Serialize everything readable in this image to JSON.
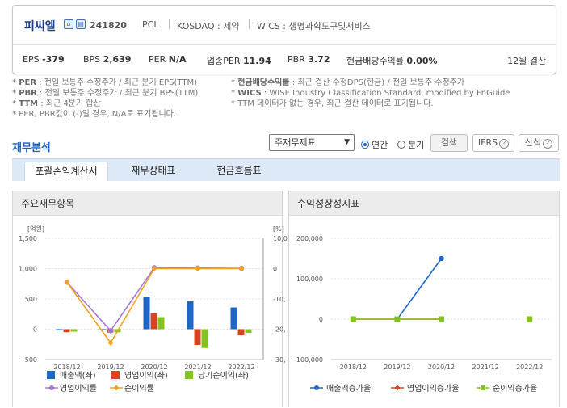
{
  "company": {
    "name": "피씨엘",
    "code": "241820",
    "eng": "PCL",
    "market": "KOSDAQ : 제약",
    "wics": "WICS : 생명과학도구및서비스",
    "metrics": [
      {
        "label": "EPS",
        "value": "-379"
      },
      {
        "label": "BPS",
        "value": "2,639"
      },
      {
        "label": "PER",
        "value": "N/A"
      },
      {
        "label": "업종PER",
        "value": "11.94"
      },
      {
        "label": "PBR",
        "value": "3.72"
      },
      {
        "label": "현금배당수익률",
        "value": "0.00%"
      }
    ],
    "fiscal": "12월 결산"
  },
  "notes": {
    "left": [
      {
        "k": "PER",
        "t": " : 전일 보통주 수정주가 / 최근 분기 EPS(TTM)"
      },
      {
        "k": "PBR",
        "t": " : 전일 보통주 수정주가 / 최근 분기 BPS(TTM)"
      },
      {
        "k": "TTM",
        "t": " : 최근 4분기 합산"
      }
    ],
    "right": [
      {
        "k": "현금배당수익률",
        "t": " : 최근 결산 수정DPS(현금) / 전일 보통주 수정주가"
      },
      {
        "k": "WICS",
        "t": " : WISE Industry Classification Standard, modified by FnGuide"
      },
      {
        "k": "",
        "t": "TTM 데이터가 없는 경우, 최근 결산 데이터로 표기됩니다."
      }
    ],
    "bottom": "PER, PBR값이 (-)일 경우, N/A로 표기됩니다."
  },
  "section": {
    "title": "재무분석",
    "select_value": "주재무제표",
    "radio_annual": "연간",
    "radio_quarter": "분기",
    "search_btn": "검색",
    "ifrs_btn": "IFRS",
    "formula_btn": "산식",
    "q_mark": "?"
  },
  "tabs": [
    "포괄손익계산서",
    "재무상태표",
    "현금흐름표"
  ],
  "panels": {
    "left_title": "주요재무항목",
    "right_title": "수익성장성지표"
  },
  "colors": {
    "revenue": "#1f66c9",
    "op_income": "#d9421f",
    "net_income": "#84c21f",
    "op_margin": "#a57ad6",
    "net_margin": "#f3a21f"
  },
  "chart_data": [
    {
      "type": "bar",
      "categories": [
        "2018/12",
        "2019/12",
        "2020/12",
        "2021/12",
        "2022/12"
      ],
      "y_left_unit": "[억원]",
      "y_right_unit": "[%]",
      "ylim_left": [
        -500,
        1500
      ],
      "ylim_right": [
        -30000,
        10000
      ],
      "y_left_ticks": [
        "1,500",
        "1,000",
        "500",
        "0",
        "-500"
      ],
      "y_right_ticks": [
        "10,0",
        "0",
        "-10,",
        "-20,",
        "-30,"
      ],
      "series": [
        {
          "name": "매출액(좌)",
          "axis": "left",
          "values": [
            -20,
            -15,
            540,
            460,
            360
          ]
        },
        {
          "name": "영업이익(좌)",
          "axis": "left",
          "values": [
            -50,
            -55,
            260,
            -260,
            -100
          ]
        },
        {
          "name": "당기순이익(좌)",
          "axis": "left",
          "values": [
            -40,
            -50,
            200,
            -310,
            -60
          ]
        },
        {
          "name": "영업이익률",
          "axis": "right",
          "type": "line",
          "values": [
            -4500,
            -20500,
            300,
            200,
            100
          ]
        },
        {
          "name": "순이익률",
          "axis": "right",
          "type": "line",
          "values": [
            -4500,
            -24500,
            0,
            0,
            0
          ]
        }
      ]
    },
    {
      "type": "line",
      "categories": [
        "2018/12",
        "2019/12",
        "2020/12",
        "2021/12",
        "2022/12"
      ],
      "ylim": [
        -100000,
        200000
      ],
      "y_ticks": [
        "200,000",
        "100,000",
        "0",
        "-100,000"
      ],
      "series": [
        {
          "name": "매출액증가율",
          "values": [
            null,
            0,
            150000,
            null,
            null
          ]
        },
        {
          "name": "영업이익증가율",
          "values": [
            0,
            0,
            0,
            null,
            0
          ]
        },
        {
          "name": "순이익증가율",
          "values": [
            0,
            0,
            0,
            null,
            0
          ]
        }
      ]
    }
  ]
}
